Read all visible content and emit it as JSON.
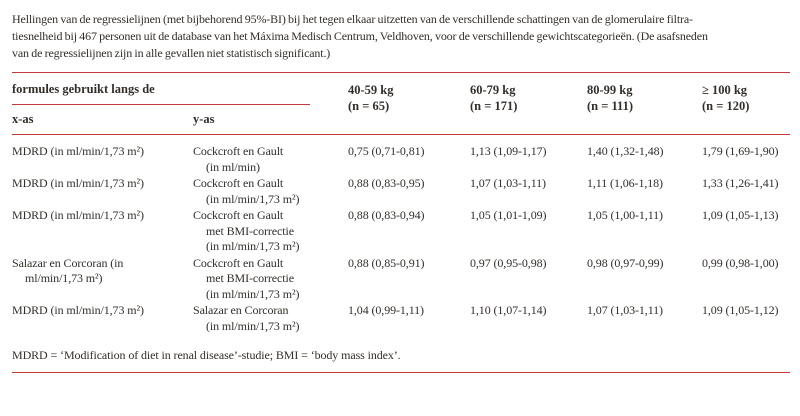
{
  "caption": "Hellingen van de regressielijnen (met bijbehorend 95%-BI) bij het tegen elkaar uitzetten van de verschillende schattingen van de glomerulaire filtra-\ntiesnelheid bij 467 personen uit de database van het Máxima Medisch Centrum, Veldhoven, voor de verschillende gewichtscategorieën. (De asafsneden\nvan de regressielijnen zijn in alle gevallen niet statistisch significant.)",
  "colors": {
    "rule_red": "#c23b3b",
    "text": "#332e29"
  },
  "table": {
    "header": {
      "formulas_label": "formules gebruikt langs de",
      "x_axis_label": "x-as",
      "y_axis_label": "y-as",
      "weight_columns": [
        {
          "range": "40-59 kg",
          "n": "(n = 65)"
        },
        {
          "range": "60-79 kg",
          "n": "(n = 171)"
        },
        {
          "range": "80-99 kg",
          "n": "(n = 111)"
        },
        {
          "range": "≥ 100 kg",
          "n": "(n = 120)"
        }
      ]
    },
    "rows": [
      {
        "x_as": "MDRD (in ml/min/1,73 m²)",
        "y_as": "Cockcroft en Gault\n(in ml/min)",
        "values": [
          "0,75 (0,71-0,81)",
          "1,13 (1,09-1,17)",
          "1,40 (1,32-1,48)",
          "1,79 (1,69-1,90)"
        ]
      },
      {
        "x_as": "MDRD (in ml/min/1,73 m²)",
        "y_as": "Cockcroft en Gault\n(in ml/min/1,73 m²)",
        "values": [
          "0,88 (0,83-0,95)",
          "1,07 (1,03-1,11)",
          "1,11 (1,06-1,18)",
          "1,33 (1,26-1,41)"
        ]
      },
      {
        "x_as": "MDRD (in ml/min/1,73 m²)",
        "y_as": "Cockcroft en Gault\nmet BMI-correctie\n(in ml/min/1,73 m²)",
        "values": [
          "0,88 (0,83-0,94)",
          "1,05 (1,01-1,09)",
          "1,05 (1,00-1,11)",
          "1,09 (1,05-1,13)"
        ]
      },
      {
        "x_as": "Salazar en Corcoran (in\nml/min/1,73 m²)",
        "y_as": "Cockcroft en Gault\nmet BMI-correctie\n(in ml/min/1,73 m²)",
        "values": [
          "0,88 (0,85-0,91)",
          "0,97 (0,95-0,98)",
          "0,98 (0,97-0,99)",
          "0,99 (0,98-1,00)"
        ]
      },
      {
        "x_as": "MDRD (in ml/min/1,73 m²)",
        "y_as": "Salazar en Corcoran\n(in ml/min/1,73 m²)",
        "values": [
          "1,04 (0,99-1,11)",
          "1,10 (1,07-1,14)",
          "1,07 (1,03-1,11)",
          "1,09 (1,05-1,12)"
        ]
      }
    ]
  },
  "footnote": "MDRD = ‘Modification of diet in renal disease’-studie; BMI = ‘body mass index’."
}
